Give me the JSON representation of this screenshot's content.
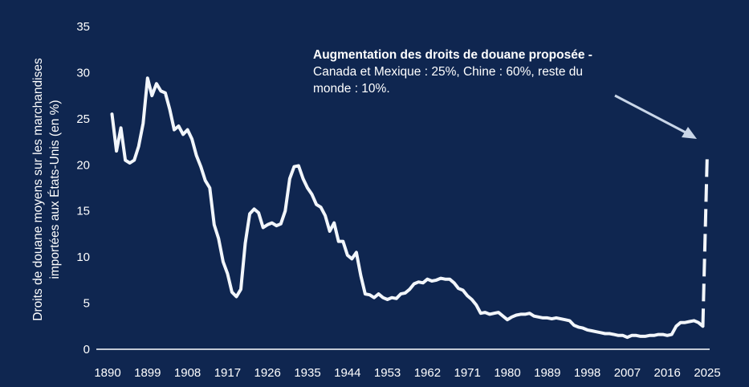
{
  "colors": {
    "background": "#0f2650",
    "line": "#f2f6fb",
    "axis": "#ffffff"
  },
  "chart_data": {
    "type": "line",
    "title": "",
    "xlabel": "",
    "ylabel": "Droits de douane moyens sur les marchandises importées aux États-Unis (en %)",
    "ylabel_lines": [
      "Droits de douane moyens sur les marchandises",
      "importées aux États-Unis (en %)"
    ],
    "xlim": [
      1890,
      2025
    ],
    "ylim": [
      0,
      35
    ],
    "grid": false,
    "x_ticks": [
      "1890",
      "1899",
      "1908",
      "1917",
      "1926",
      "1935",
      "1944",
      "1953",
      "1962",
      "1971",
      "1980",
      "1989",
      "1998",
      "2007",
      "2016",
      "2025"
    ],
    "y_ticks": [
      "0",
      "5",
      "10",
      "15",
      "20",
      "25",
      "30",
      "35"
    ],
    "series": [
      {
        "style": "solid",
        "x": [
          1891,
          1892,
          1893,
          1894,
          1895,
          1896,
          1897,
          1898,
          1899,
          1900,
          1901,
          1902,
          1903,
          1904,
          1905,
          1906,
          1907,
          1908,
          1909,
          1910,
          1911,
          1912,
          1913,
          1914,
          1915,
          1916,
          1917,
          1918,
          1919,
          1920,
          1921,
          1922,
          1923,
          1924,
          1925,
          1926,
          1927,
          1928,
          1929,
          1930,
          1931,
          1932,
          1933,
          1934,
          1935,
          1936,
          1937,
          1938,
          1939,
          1940,
          1941,
          1942,
          1943,
          1944,
          1945,
          1946,
          1947,
          1948,
          1949,
          1950,
          1951,
          1952,
          1953,
          1954,
          1955,
          1956,
          1957,
          1958,
          1959,
          1960,
          1961,
          1962,
          1963,
          1964,
          1965,
          1966,
          1967,
          1968,
          1969,
          1970,
          1971,
          1972,
          1973,
          1974,
          1975,
          1976,
          1977,
          1978,
          1979,
          1980,
          1981,
          1982,
          1983,
          1984,
          1985,
          1986,
          1987,
          1988,
          1989,
          1990,
          1991,
          1992,
          1993,
          1994,
          1995,
          1996,
          1997,
          1998,
          1999,
          2000,
          2001,
          2002,
          2003,
          2004,
          2005,
          2006,
          2007,
          2008,
          2009,
          2010,
          2011,
          2012,
          2013,
          2014,
          2015,
          2016,
          2017,
          2018,
          2019,
          2020,
          2021,
          2022,
          2023,
          2024
        ],
        "y": [
          25.5,
          21.5,
          24,
          20.5,
          20.2,
          20.5,
          22,
          24.5,
          29.4,
          27.5,
          28.8,
          28,
          27.8,
          26,
          23.8,
          24.2,
          23.3,
          23.8,
          22.8,
          21,
          19.8,
          18.3,
          17.5,
          13.5,
          12,
          9.5,
          8.2,
          6.2,
          5.7,
          6.5,
          11.5,
          14.7,
          15.2,
          14.8,
          13.2,
          13.5,
          13.7,
          13.4,
          13.6,
          15,
          18.5,
          19.8,
          19.9,
          18.5,
          17.5,
          16.8,
          15.7,
          15.4,
          14.5,
          12.8,
          13.7,
          11.7,
          11.7,
          10.2,
          9.8,
          10.5,
          8,
          6,
          5.9,
          5.6,
          6,
          5.6,
          5.4,
          5.6,
          5.5,
          6,
          6.1,
          6.5,
          7.1,
          7.3,
          7.2,
          7.6,
          7.4,
          7.5,
          7.7,
          7.6,
          7.6,
          7.2,
          6.6,
          6.4,
          5.8,
          5.4,
          4.8,
          3.9,
          4,
          3.8,
          3.9,
          4,
          3.6,
          3.2,
          3.5,
          3.7,
          3.8,
          3.8,
          3.9,
          3.6,
          3.5,
          3.4,
          3.4,
          3.3,
          3.4,
          3.3,
          3.2,
          3.1,
          2.6,
          2.4,
          2.3,
          2.1,
          2,
          1.9,
          1.8,
          1.7,
          1.7,
          1.6,
          1.5,
          1.5,
          1.3,
          1.5,
          1.5,
          1.4,
          1.4,
          1.5,
          1.5,
          1.6,
          1.6,
          1.5,
          1.6,
          2.5,
          2.9,
          2.9,
          3,
          3.1,
          2.9,
          2.5
        ]
      },
      {
        "style": "dashed",
        "x": [
          2024,
          2025
        ],
        "y": [
          2.5,
          21.3
        ]
      }
    ],
    "annotation": {
      "title": "Augmentation des droits de douane proposée -",
      "lines": [
        "Canada et Mexique : 25%, Chine : 60%, reste du",
        "monde : 10%."
      ]
    }
  }
}
